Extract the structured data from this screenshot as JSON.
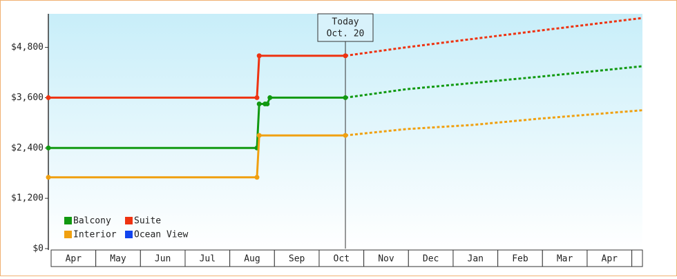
{
  "chart_data": {
    "type": "line",
    "categories": [
      "Apr",
      "May",
      "Jun",
      "Jul",
      "Aug",
      "Sep",
      "Oct",
      "Nov",
      "Dec",
      "Jan",
      "Feb",
      "Mar",
      "Apr"
    ],
    "xlim": [
      0,
      13.3
    ],
    "ylim": [
      0,
      5600
    ],
    "yticks": [
      {
        "value": 0,
        "label": "$0"
      },
      {
        "value": 1200,
        "label": "$1,200"
      },
      {
        "value": 2400,
        "label": "$2,400"
      },
      {
        "value": 3600,
        "label": "$3,600"
      },
      {
        "value": 4800,
        "label": "$4,800"
      }
    ],
    "annotation": {
      "x": 6.65,
      "text": [
        "Today",
        "Oct. 20"
      ]
    },
    "legend": "lower left",
    "series": [
      {
        "name": "Balcony",
        "color": "#119911",
        "x": [
          0,
          4.67,
          4.72,
          4.85,
          4.9,
          4.96,
          6.65
        ],
        "values": [
          2400,
          2400,
          3450,
          3450,
          3450,
          3600,
          3600
        ],
        "forecast_x": [
          6.65,
          8,
          9.5,
          11,
          13.3
        ],
        "forecast_values": [
          3600,
          3800,
          3950,
          4100,
          4350
        ]
      },
      {
        "name": "Suite",
        "color": "#ee3311",
        "x": [
          0,
          4.67,
          4.72,
          6.65
        ],
        "values": [
          3600,
          3600,
          4600,
          4600
        ],
        "forecast_x": [
          6.65,
          8,
          9.5,
          11,
          13.3
        ],
        "forecast_values": [
          4600,
          4800,
          5000,
          5200,
          5500
        ]
      },
      {
        "name": "Interior",
        "color": "#f0a010",
        "x": [
          0,
          4.67,
          4.72,
          6.65
        ],
        "values": [
          1700,
          1700,
          2700,
          2700
        ],
        "forecast_x": [
          6.65,
          8,
          9.5,
          11,
          13.3
        ],
        "forecast_values": [
          2700,
          2850,
          2950,
          3100,
          3300
        ]
      },
      {
        "name": "Ocean View",
        "color": "#1144ee",
        "x": [],
        "values": [],
        "forecast_x": [],
        "forecast_values": []
      }
    ]
  }
}
